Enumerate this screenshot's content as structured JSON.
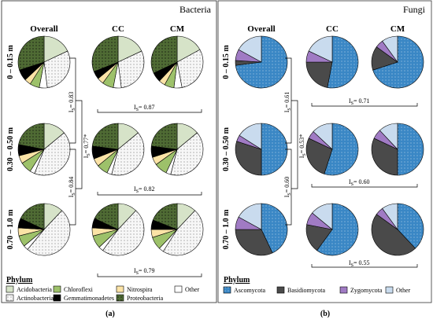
{
  "colors": {
    "Acidobacteria": "#d6e3c8",
    "Actinobacteria": "#f2f2f2",
    "Chloroflexi": "#9dc16a",
    "Gemmatimonadetes": "#000000",
    "Nitrospira": "#fbe3a6",
    "Other_b": "#ffffff",
    "Proteobacteria": "#4f6b34",
    "Ascomycota": "#3a87c5",
    "Basidiomycota": "#4a4a4a",
    "Zygomycota": "#a07bc4",
    "Other_f": "#c9dbee",
    "fungi_bg": "#cdddec",
    "bacteria_border": "#222222",
    "fungi_border": "#333333"
  },
  "bacteria": {
    "title": "Bacteria",
    "subcaption": "(a)",
    "columns": [
      "Overall",
      "CC",
      "CM"
    ],
    "rows": [
      "0 – 0.15 m",
      "0.30 – 0.50 m",
      "0.70 – 1.0 m"
    ],
    "indices": {
      "i1": "I",
      "i1_sub": "S",
      "row_ccm": [
        "= 0.87",
        "= 0.82",
        "= 0.79"
      ],
      "vert_a": "= 0.83",
      "vert_b": "= 0.84",
      "vert_c": "= 0.77*"
    },
    "legend": {
      "title": "Phylum",
      "items": [
        {
          "key": "Acidobacteria",
          "label": "Acidobacteria"
        },
        {
          "key": "Chloroflexi",
          "label": "Chloroflexi"
        },
        {
          "key": "Nitrospira",
          "label": "Nitrospira"
        },
        {
          "key": "Other_b",
          "label": "Other"
        },
        {
          "key": "Actinobacteria",
          "label": "Actinobacteria"
        },
        {
          "key": "Gemmatimonadetes",
          "label": "Gemmatimonadetes"
        },
        {
          "key": "Proteobacteria",
          "label": "Proteobacteria"
        }
      ]
    }
  },
  "fungi": {
    "title": "Fungi",
    "subcaption": "(b)",
    "columns": [
      "Overall",
      "CC",
      "CM"
    ],
    "rows": [
      "0 – 0.15 m",
      "0.30 – 0.50 m",
      "0.70 – 1.0 m"
    ],
    "indices": {
      "row_ccm": [
        "= 0.71",
        "= 0.60",
        "= 0.55"
      ],
      "vert_a": "= 0.61",
      "vert_b": "= 0.60",
      "vert_c": "= 0.53*"
    },
    "legend": {
      "title": "Phylum",
      "items": [
        {
          "key": "Ascomycota",
          "label": "Ascomycota"
        },
        {
          "key": "Basidiomycota",
          "label": "Basidiomycota"
        },
        {
          "key": "Zygomycota",
          "label": "Zygomycota"
        },
        {
          "key": "Other_f",
          "label": "Other"
        }
      ]
    }
  },
  "chart_data": [
    {
      "type": "pie",
      "title": "Bacteria",
      "panel": "(a)",
      "order": [
        "Acidobacteria",
        "Actinobacteria",
        "Other_b",
        "Chloroflexi",
        "Nitrospira",
        "Gemmatimonadetes",
        "Proteobacteria"
      ],
      "pies": [
        {
          "row": "0 – 0.15 m",
          "col": "Overall",
          "values": [
            0.18,
            0.3,
            0.05,
            0.06,
            0.04,
            0.07,
            0.3
          ]
        },
        {
          "row": "0 – 0.15 m",
          "col": "CC",
          "values": [
            0.18,
            0.3,
            0.05,
            0.07,
            0.04,
            0.05,
            0.31
          ]
        },
        {
          "row": "0 – 0.15 m",
          "col": "CM",
          "values": [
            0.17,
            0.3,
            0.05,
            0.06,
            0.04,
            0.06,
            0.32
          ]
        },
        {
          "row": "0.30 – 0.50 m",
          "col": "Overall",
          "values": [
            0.14,
            0.42,
            0.03,
            0.07,
            0.05,
            0.07,
            0.22
          ]
        },
        {
          "row": "0.30 – 0.50 m",
          "col": "CC",
          "values": [
            0.14,
            0.4,
            0.03,
            0.07,
            0.05,
            0.08,
            0.23
          ]
        },
        {
          "row": "0.30 – 0.50 m",
          "col": "CM",
          "values": [
            0.14,
            0.4,
            0.03,
            0.08,
            0.05,
            0.07,
            0.23
          ]
        },
        {
          "row": "0.70 – 1.0 m",
          "col": "Overall",
          "values": [
            0.12,
            0.49,
            0.03,
            0.07,
            0.05,
            0.06,
            0.18
          ]
        },
        {
          "row": "0.70 – 1.0 m",
          "col": "CC",
          "values": [
            0.12,
            0.48,
            0.03,
            0.08,
            0.05,
            0.06,
            0.18
          ]
        },
        {
          "row": "0.70 – 1.0 m",
          "col": "CM",
          "values": [
            0.12,
            0.47,
            0.03,
            0.08,
            0.05,
            0.06,
            0.19
          ]
        }
      ]
    },
    {
      "type": "pie",
      "title": "Fungi",
      "panel": "(b)",
      "order": [
        "Ascomycota",
        "Basidiomycota",
        "Zygomycota",
        "Other_f"
      ],
      "pies": [
        {
          "row": "0 – 0.15 m",
          "col": "Overall",
          "values": [
            0.73,
            0.03,
            0.07,
            0.17
          ]
        },
        {
          "row": "0 – 0.15 m",
          "col": "CC",
          "values": [
            0.53,
            0.22,
            0.07,
            0.18
          ]
        },
        {
          "row": "0 – 0.15 m",
          "col": "CM",
          "values": [
            0.7,
            0.15,
            0.05,
            0.1
          ]
        },
        {
          "row": "0.30 – 0.50 m",
          "col": "Overall",
          "values": [
            0.5,
            0.3,
            0.04,
            0.16
          ]
        },
        {
          "row": "0.30 – 0.50 m",
          "col": "CC",
          "values": [
            0.55,
            0.27,
            0.05,
            0.13
          ]
        },
        {
          "row": "0.30 – 0.50 m",
          "col": "CM",
          "values": [
            0.5,
            0.32,
            0.06,
            0.12
          ]
        },
        {
          "row": "0.70 – 1.0 m",
          "col": "Overall",
          "values": [
            0.43,
            0.32,
            0.08,
            0.17
          ]
        },
        {
          "row": "0.70 – 1.0 m",
          "col": "CC",
          "values": [
            0.6,
            0.18,
            0.08,
            0.14
          ]
        },
        {
          "row": "0.70 – 1.0 m",
          "col": "CM",
          "values": [
            0.38,
            0.47,
            0.05,
            0.1
          ]
        }
      ]
    }
  ]
}
